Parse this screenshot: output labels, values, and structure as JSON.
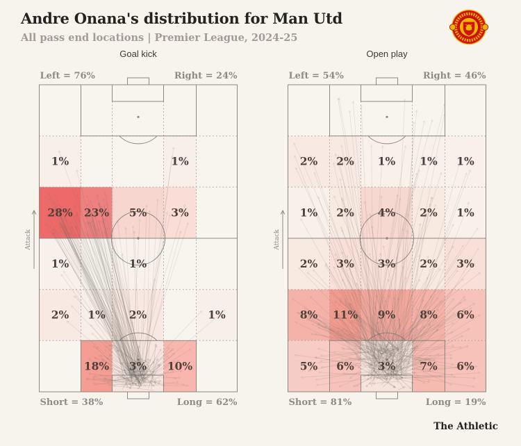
{
  "style": {
    "page_bg": "#f7f4ed",
    "pitch_bg": "#f8f5ef",
    "pitch_line": "#8c8781",
    "grid_line": "#a8a299",
    "value_text": "#50403a",
    "edge_label_text": "#8f8a83",
    "chart_title_text": "#3a3a3a",
    "title_text": "#242320",
    "subtitle_text": "#a29c93",
    "brand_text": "#22211f",
    "crest_red": "#d0120b",
    "crest_gold": "#f0b400",
    "pass_line": "rgba(110,104,98,0.16)",
    "pass_cluster": "rgba(100,95,90,0.22)",
    "heat_low": "#f8f0e9",
    "heat_high": "#ee6a69"
  },
  "header": {
    "title": "Andre Onana's distribution for Man Utd",
    "subtitle": "All pass end locations | Premier League, 2024-25",
    "club_crest": "Manchester United"
  },
  "footer": {
    "brand": "The Athletic"
  },
  "chart_data": [
    {
      "type": "heatmap",
      "title": "Goal kick",
      "pitch": "vertical-full-pitch-attacking-up",
      "grid": {
        "rows": 5,
        "cols": 5
      },
      "unit": "%",
      "values": [
        [
          1,
          null,
          null,
          1,
          null
        ],
        [
          28,
          23,
          5,
          3,
          null
        ],
        [
          1,
          null,
          1,
          null,
          null
        ],
        [
          2,
          1,
          2,
          null,
          1
        ],
        [
          null,
          18,
          3,
          10,
          null
        ]
      ],
      "cell_colors": [
        [
          "#f7efe8",
          null,
          null,
          "#f7efe8",
          null
        ],
        [
          "#ee6a69",
          "#f08181",
          "#f7d6cf",
          "#f9ddd6",
          null
        ],
        [
          "#f8f0ea",
          null,
          "#f9f2ec",
          null,
          null
        ],
        [
          "#f8e9e2",
          "#f8eee7",
          "#f8e8e1",
          null,
          "#f7f0e9"
        ],
        [
          null,
          "#f69d93",
          "#f7e6df",
          "#f8b6ae",
          null
        ]
      ],
      "labels": {
        "top_left": "Left = 76%",
        "top_right": "Right = 24%",
        "bottom_left": "Short = 38%",
        "bottom_right": "Long = 62%",
        "attack": "Attack"
      }
    },
    {
      "type": "heatmap",
      "title": "Open play",
      "pitch": "vertical-full-pitch-attacking-up",
      "grid": {
        "rows": 5,
        "cols": 5
      },
      "unit": "%",
      "values": [
        [
          2,
          2,
          1,
          1,
          1
        ],
        [
          1,
          2,
          4,
          2,
          1
        ],
        [
          2,
          3,
          3,
          2,
          3
        ],
        [
          8,
          11,
          9,
          8,
          6
        ],
        [
          5,
          6,
          3,
          7,
          6
        ]
      ],
      "cell_colors": [
        [
          "#f8eae2",
          "#f8eae2",
          "#f8f0e9",
          "#f8f0e9",
          "#f8f0e9"
        ],
        [
          "#f8f0e9",
          "#f8e9e1",
          "#f6d8d0",
          "#f8e9e1",
          "#f8f0e9"
        ],
        [
          "#f8e9e1",
          "#f8e0d8",
          "#f8e0d8",
          "#f8e9e1",
          "#f8e0d8"
        ],
        [
          "#f5b2a8",
          "#f19a8e",
          "#f4a89d",
          "#f5b2a8",
          "#f6c2b9"
        ],
        [
          "#f7ccc4",
          "#f6c2b9",
          "#f6e3dc",
          "#f5bab0",
          "#f6c2b9"
        ]
      ],
      "labels": {
        "top_left": "Left = 54%",
        "top_right": "Right = 46%",
        "bottom_left": "Short = 81%",
        "bottom_right": "Long = 19%",
        "attack": "Attack"
      }
    }
  ]
}
